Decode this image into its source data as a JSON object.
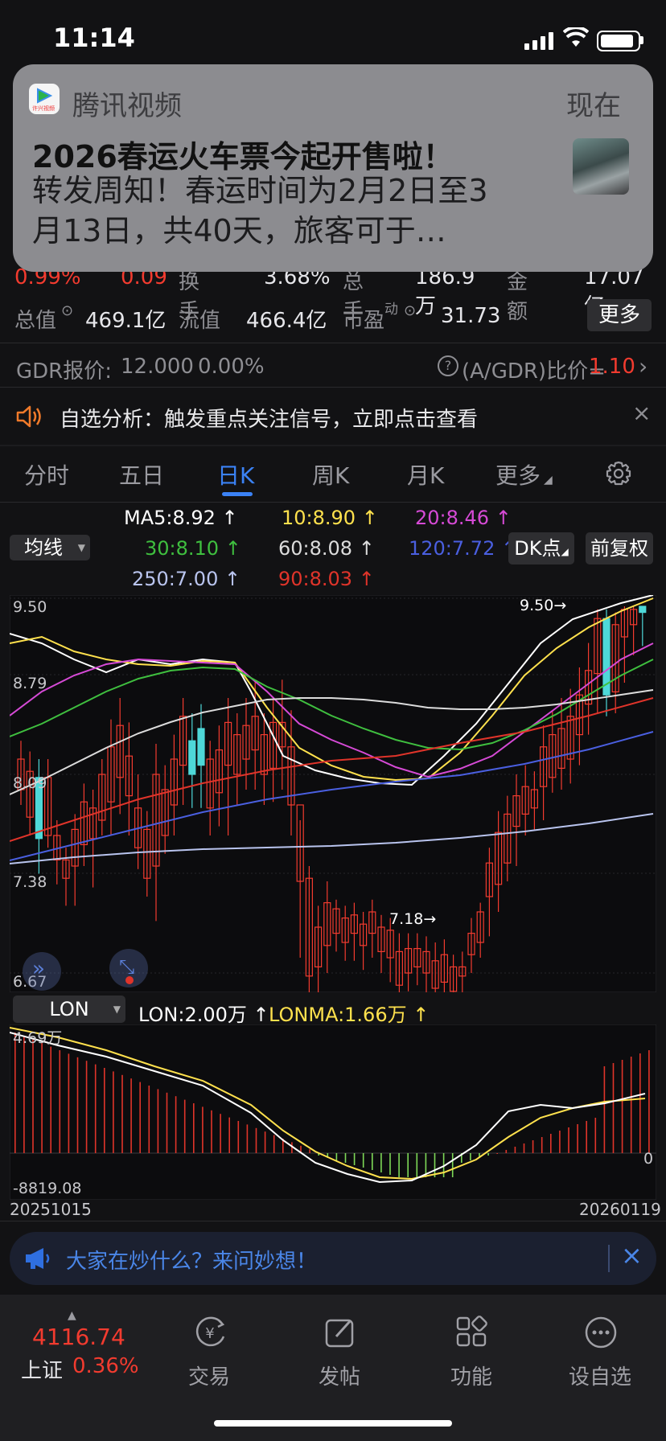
{
  "status_bar": {
    "time": "11:14"
  },
  "notification": {
    "app_name": "腾讯视频",
    "app_icon_text": "许兴视频",
    "when": "现在",
    "title": "2026春运火车票今起开售啦！",
    "body": "转发周知！春运时间为2月2日至3月13日，共40天，旅客可于…"
  },
  "quote": {
    "row1": {
      "pct": "0.99%",
      "chg": "0.09",
      "turnover_label": "换手",
      "turnover": "3.68%",
      "vol_label": "总手",
      "vol": "186.9万",
      "amount_label": "金额",
      "amount": "17.07亿"
    },
    "row2": {
      "mcap_label": "总值",
      "mcap": "469.1亿",
      "float_label": "流值",
      "float": "466.4亿",
      "pe_label": "市盈",
      "pe_sup": "动",
      "pe": "31.73",
      "more": "更多"
    },
    "gdr": {
      "label": "GDR报价:",
      "price": "12.000",
      "pct": "0.00%",
      "ratio_label": "(A/GDR)比价=",
      "ratio": "1.10"
    },
    "alert": "自选分析：触发重点关注信号，立即点击查看"
  },
  "tabs": [
    "分时",
    "五日",
    "日K",
    "周K",
    "月K",
    "更多"
  ],
  "active_tab": "日K",
  "chart_controls": {
    "ma_select": "均线",
    "dk": "DK点",
    "fq": "前复权"
  },
  "ma_legend": [
    {
      "text": "MA5:8.92",
      "color": "#ffffff"
    },
    {
      "text": "10:8.90",
      "color": "#ffe14d"
    },
    {
      "text": "20:8.46",
      "color": "#d64ad6"
    },
    {
      "text": "30:8.10",
      "color": "#3fbf3f"
    },
    {
      "text": "60:8.08",
      "color": "#dcdcdc"
    },
    {
      "text": "120:7.72",
      "color": "#4a5fe0"
    },
    {
      "text": "250:7.00",
      "color": "#b9c4ee"
    },
    {
      "text": "90:8.03",
      "color": "#e0342a"
    }
  ],
  "kline_axis": {
    "ticks": [
      "9.50",
      "8.79",
      "8.09",
      "7.38",
      "6.67"
    ],
    "high_label": "9.50",
    "low_label": "7.18"
  },
  "lon_panel": {
    "select": "LON",
    "lon": "LON:2.00万",
    "lonma": "LONMA:1.66万",
    "top": "4.69万",
    "bottom": "-8819.08",
    "zero": "0"
  },
  "date_range": {
    "start": "20251015",
    "end": "20260119"
  },
  "promo": {
    "text": "大家在炒什么？来问妙想！"
  },
  "index": {
    "value": "4116.74",
    "name": "上证",
    "pct": "0.36%"
  },
  "nav": [
    "交易",
    "发帖",
    "功能",
    "设自选"
  ],
  "colors": {
    "up": "#f23b2f",
    "down": "#4ed8d8",
    "accent": "#3b82f6"
  }
}
